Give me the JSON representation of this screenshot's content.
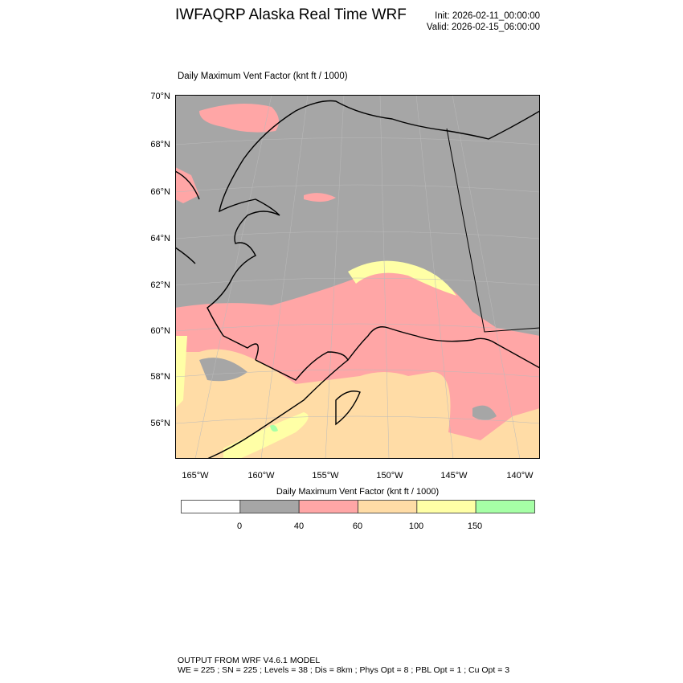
{
  "header": {
    "title": "IWFAQRP Alaska Real Time WRF",
    "init": "Init: 2026-02-11_00:00:00",
    "valid": "Valid: 2026-02-15_06:00:00"
  },
  "map": {
    "subtitle": "Daily Maximum Vent Factor   (knt ft / 1000)",
    "lat_labels": [
      "70°N",
      "68°N",
      "66°N",
      "64°N",
      "62°N",
      "60°N",
      "58°N",
      "56°N"
    ],
    "lon_labels": [
      "165°W",
      "160°W",
      "155°W",
      "150°W",
      "145°W",
      "140°W"
    ]
  },
  "colorbar": {
    "title": "Daily Maximum Vent Factor  (knt ft / 1000)",
    "colors": [
      "#ffffff",
      "#a6a6a6",
      "#ffa6a6",
      "#ffdca6",
      "#ffffa6",
      "#a6ffa6"
    ],
    "labels": [
      "0",
      "40",
      "60",
      "100",
      "150"
    ]
  },
  "footer": {
    "line1": "OUTPUT FROM WRF V4.6.1 MODEL",
    "line2": "WE = 225 ; SN = 225 ; Levels = 38 ; Dis = 8km ; Phys Opt = 8 ; PBL Opt = 1 ; Cu Opt = 3"
  }
}
